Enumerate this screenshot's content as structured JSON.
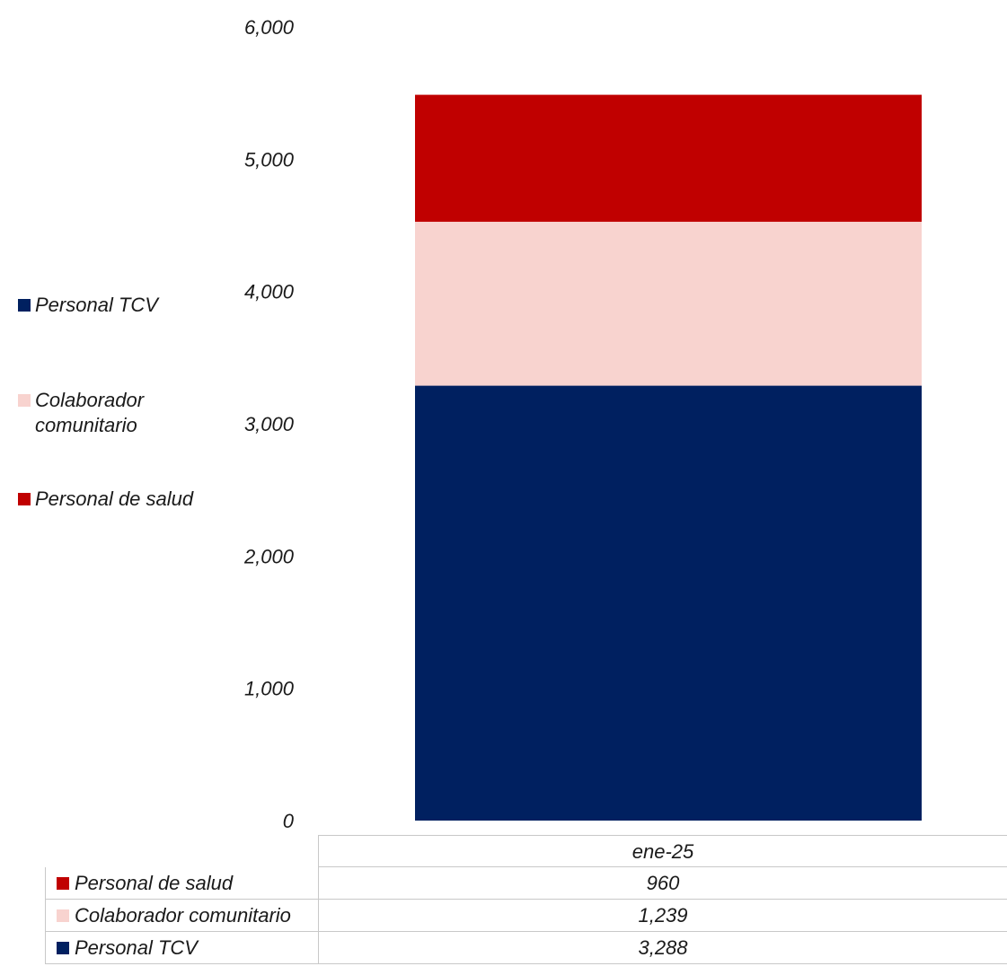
{
  "chart_data": {
    "type": "bar",
    "stacked": true,
    "categories": [
      "ene-25"
    ],
    "series": [
      {
        "name": "Personal TCV",
        "values": [
          3288
        ],
        "value_labels": [
          "3,288"
        ],
        "color": "#002060"
      },
      {
        "name": "Colaborador comunitario",
        "values": [
          1239
        ],
        "value_labels": [
          "1,239"
        ],
        "color": "#f8d3cf"
      },
      {
        "name": "Personal de salud",
        "values": [
          960
        ],
        "value_labels": [
          "960"
        ],
        "color": "#c00000"
      }
    ],
    "title": "",
    "xlabel": "",
    "ylabel": "",
    "ylim": [
      0,
      6000
    ],
    "yticks": [
      0,
      1000,
      2000,
      3000,
      4000,
      5000,
      6000
    ],
    "ytick_labels": [
      "0",
      "1,000",
      "2,000",
      "3,000",
      "4,000",
      "5,000",
      "6,000"
    ],
    "grid": false,
    "legend_position": "left",
    "legend_order": [
      "Personal TCV",
      "Colaborador comunitario",
      "Personal de salud"
    ],
    "data_table": {
      "header": "ene-25",
      "row_order": [
        "Personal de salud",
        "Colaborador comunitario",
        "Personal TCV"
      ]
    }
  }
}
